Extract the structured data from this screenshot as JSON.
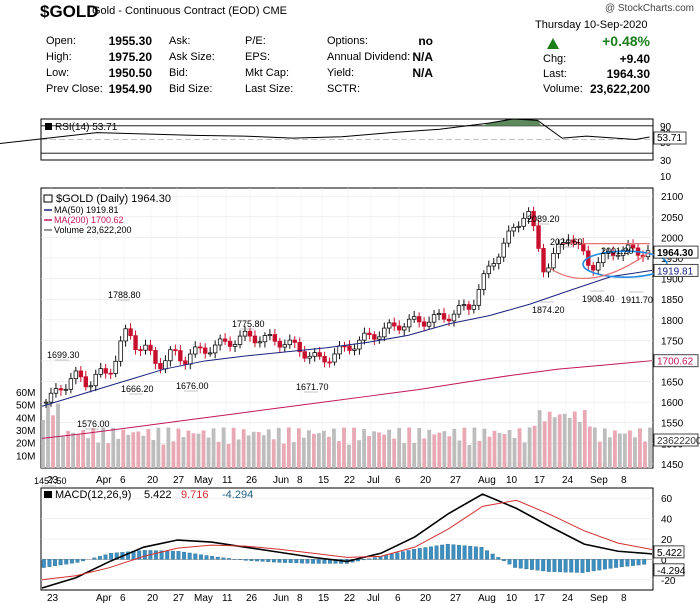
{
  "header": {
    "symbol": "$GOLD",
    "description": "Gold - Continuous Contract (EOD)",
    "exchange": "CME",
    "watermark": "@ StockCharts.com",
    "date": "Thursday 10-Sep-2020",
    "change_pct": "+0.48%",
    "rows": [
      {
        "l1": "Open:",
        "v1": "1955.30",
        "l2": "Ask:",
        "l3": "P/E:",
        "l4": "Options:",
        "v4": "no",
        "l5": "Chg:",
        "v5": "+9.40"
      },
      {
        "l1": "High:",
        "v1": "1975.20",
        "l2": "Ask Size:",
        "l3": "EPS:",
        "l4": "Annual Dividend:",
        "v4": "N/A",
        "l5": "Last:",
        "v5": "1964.30"
      },
      {
        "l1": "Low:",
        "v1": "1950.50",
        "l2": "Bid:",
        "l3": "Mkt Cap:",
        "l4": "Yield:",
        "v4": "N/A",
        "l5": "Volume:",
        "v5": "23,622,200"
      },
      {
        "l1": "Prev Close:",
        "v1": "1954.90",
        "l2": "Bid Size:",
        "l3": "Last Size:",
        "l4": "SCTR:",
        "v4": "",
        "l5": "",
        "v5": ""
      }
    ],
    "up_color": "#1a7f1a"
  },
  "chart_data": [
    {
      "type": "line",
      "name": "RSI(14)",
      "legend": "RSI(14) 53.71",
      "last_label": "53.71",
      "ylevels": [
        90,
        70,
        50,
        30,
        10
      ],
      "levels_drawn": [
        70,
        30
      ],
      "x": [
        "2020-02-23",
        "2020-03-08",
        "2020-03-22",
        "2020-04-05",
        "2020-04-19",
        "2020-05-03",
        "2020-05-17",
        "2020-05-31",
        "2020-06-14",
        "2020-06-28",
        "2020-07-12",
        "2020-07-26",
        "2020-08-02",
        "2020-08-09",
        "2020-08-16",
        "2020-08-23",
        "2020-09-06",
        "2020-09-10"
      ],
      "values": [
        35,
        44,
        52,
        60,
        58,
        56,
        55,
        52,
        54,
        60,
        65,
        74,
        84,
        78,
        52,
        55,
        50,
        53.71
      ]
    },
    {
      "type": "candlestick",
      "name": "$GOLD (Daily)",
      "legend": "$GOLD (Daily) 1964.30",
      "ylim": [
        1440,
        2120
      ],
      "yticks": [
        2100,
        2050,
        2000,
        1950,
        1900,
        1850,
        1800,
        1750,
        1700,
        1650,
        1600,
        1550,
        1500,
        1450
      ],
      "x_tick_labels": [
        "23",
        "Apr",
        "6",
        "20",
        "27",
        "May",
        "11",
        "26",
        "Jun",
        "8",
        "15",
        "22",
        "Jul",
        "6",
        "20",
        "27",
        "Aug",
        "10",
        "17",
        "24",
        "Sep",
        "8"
      ],
      "close_path": [
        [
          "2020-03-23",
          1600
        ],
        [
          "2020-03-26",
          1650
        ],
        [
          "2020-04-07",
          1660
        ],
        [
          "2020-04-14",
          1770
        ],
        [
          "2020-04-21",
          1700
        ],
        [
          "2020-05-01",
          1715
        ],
        [
          "2020-05-18",
          1760
        ],
        [
          "2020-05-29",
          1745
        ],
        [
          "2020-06-08",
          1700
        ],
        [
          "2020-06-22",
          1760
        ],
        [
          "2020-07-01",
          1790
        ],
        [
          "2020-07-13",
          1805
        ],
        [
          "2020-07-21",
          1835
        ],
        [
          "2020-07-27",
          1940
        ],
        [
          "2020-08-06",
          2070
        ],
        [
          "2020-08-11",
          1920
        ],
        [
          "2020-08-18",
          2010
        ],
        [
          "2020-08-24",
          1930
        ],
        [
          "2020-09-01",
          1970
        ],
        [
          "2020-09-10",
          1964.3
        ]
      ],
      "price_labels": [
        {
          "text": "2089.20",
          "value": 2089.2
        },
        {
          "text": "2024.60",
          "value": 2024.6
        },
        {
          "text": "2001.20",
          "value": 2001.2
        },
        {
          "text": "1874.20",
          "value": 1874.2
        },
        {
          "text": "1908.40",
          "value": 1908.4
        },
        {
          "text": "1911.70",
          "value": 1911.7
        },
        {
          "text": "1788.80",
          "value": 1788.8
        },
        {
          "text": "1775.80",
          "value": 1775.8
        },
        {
          "text": "1699.30",
          "value": 1699.3
        },
        {
          "text": "1666.20",
          "value": 1666.2
        },
        {
          "text": "1676.00",
          "value": 1676.0
        },
        {
          "text": "1671.70",
          "value": 1671.7
        },
        {
          "text": "1576.00",
          "value": 1576.0
        },
        {
          "text": "1457.50",
          "value": 1457.5
        }
      ],
      "series": [
        {
          "name": "MA(50)",
          "legend": "MA(50) 1919.81",
          "last_label": "1919.81",
          "color": "#1a237e",
          "values": [
            1590,
            1620,
            1650,
            1680,
            1700,
            1712,
            1722,
            1732,
            1745,
            1762,
            1790,
            1810,
            1838,
            1872,
            1905,
            1919.81
          ]
        },
        {
          "name": "MA(200)",
          "legend": "MA(200) 1700.62",
          "last_label": "1700.62",
          "color": "#c2185b",
          "values": [
            1512,
            1525,
            1540,
            1555,
            1570,
            1585,
            1600,
            1615,
            1630,
            1648,
            1665,
            1680,
            1690,
            1700.62
          ]
        },
        {
          "name": "Volume",
          "legend": "Volume 23,622,200",
          "last_label": "23622200"
        }
      ],
      "volume_axis": [
        "60M",
        "50M",
        "40M",
        "30M",
        "20M",
        "10M"
      ],
      "current_price_label": "1964.30",
      "colors": {
        "up": "#111111",
        "down": "#c8102e",
        "vol_up": "#bdbdbd",
        "vol_down": "#e8a8b4",
        "ellipse": "#1e88e5"
      }
    },
    {
      "type": "line",
      "name": "MACD(12,26,9)",
      "legend_parts": [
        "MACD(12,26,9)",
        "5.422",
        "9.716",
        "-4.294"
      ],
      "ylim": [
        -30,
        70
      ],
      "yticks": [
        60,
        40,
        20,
        0,
        -20
      ],
      "series": [
        {
          "name": "MACD",
          "color": "#000000",
          "values": [
            -28,
            -18,
            -2,
            12,
            19,
            17,
            12,
            7,
            2,
            -2,
            6,
            22,
            45,
            64,
            50,
            32,
            15,
            8,
            5.422
          ]
        },
        {
          "name": "Signal",
          "color": "#d32f2f",
          "values": [
            -20,
            -16,
            -8,
            3,
            11,
            14,
            13,
            10,
            6,
            2,
            3,
            12,
            30,
            52,
            58,
            44,
            28,
            16,
            9.716
          ]
        }
      ],
      "histogram": [
        -8,
        -3,
        6,
        9,
        8,
        3,
        -1,
        -3,
        -4,
        -4,
        3,
        10,
        15,
        12,
        -8,
        -12,
        -13,
        -8,
        -4.294
      ],
      "last_labels": [
        "5.422",
        "-4.294"
      ]
    }
  ],
  "x_axis_labels": [
    "23",
    "Apr",
    "6",
    "20",
    "27",
    "May",
    "11",
    "26",
    "Jun",
    "8",
    "15",
    "22",
    "Jul",
    "6",
    "20",
    "27",
    "Aug",
    "10",
    "17",
    "24",
    "Sep",
    "8"
  ]
}
